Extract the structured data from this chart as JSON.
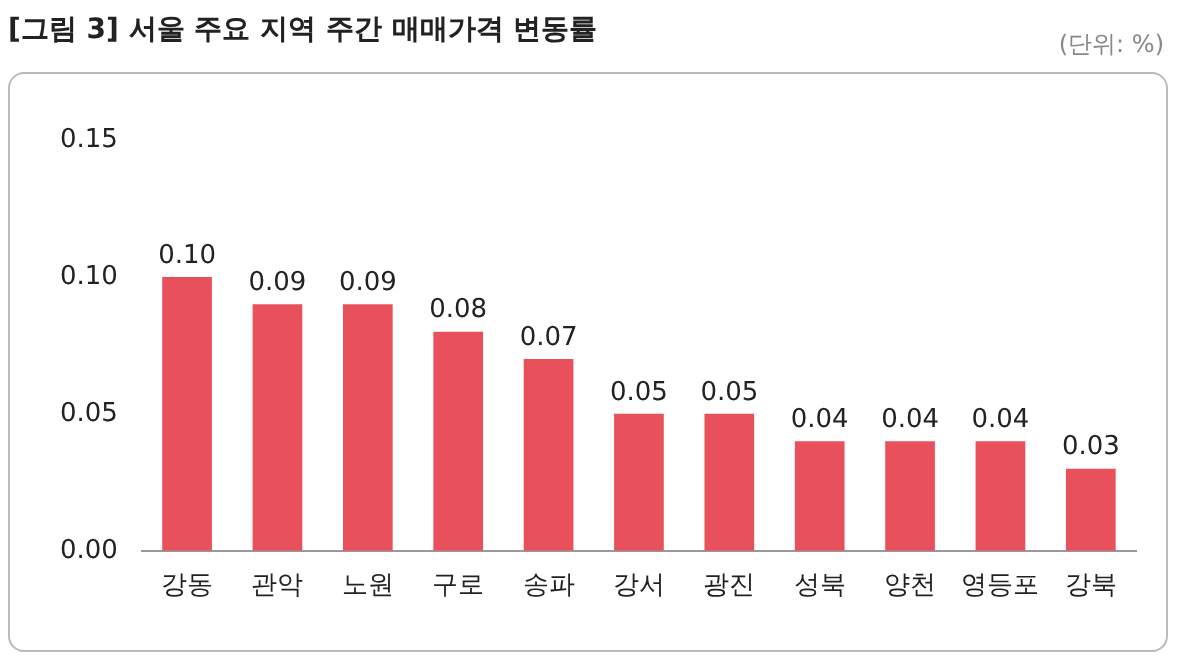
{
  "chart_data": {
    "type": "bar",
    "title": "[그림 3] 서울 주요 지역 주간 매매가격 변동률",
    "annotations": [
      "(단위: %)"
    ],
    "categories": [
      "강동",
      "관악",
      "노원",
      "구로",
      "송파",
      "강서",
      "광진",
      "성북",
      "양천",
      "영등포",
      "강북"
    ],
    "values": [
      0.1,
      0.09,
      0.09,
      0.08,
      0.07,
      0.05,
      0.05,
      0.04,
      0.04,
      0.04,
      0.03
    ],
    "value_labels": [
      "0.10",
      "0.09",
      "0.09",
      "0.08",
      "0.07",
      "0.05",
      "0.05",
      "0.04",
      "0.04",
      "0.04",
      "0.03"
    ],
    "color": "#e8505b",
    "ylim": [
      0,
      0.15
    ],
    "yticks": [
      {
        "value": 0,
        "label": "0.00"
      },
      {
        "value": 0.05,
        "label": "0.05"
      },
      {
        "value": 0.1,
        "label": "0.10"
      },
      {
        "value": 0.15,
        "label": "0.15"
      }
    ],
    "grid": false,
    "legend": false
  }
}
